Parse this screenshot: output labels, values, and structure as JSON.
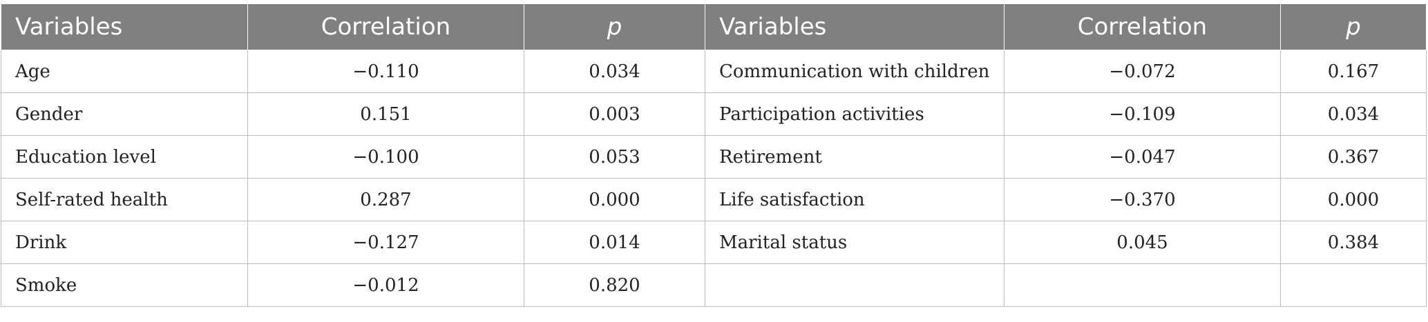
{
  "header": {
    "col1": "Variables",
    "col2": "Correlation",
    "col3": "p",
    "col4": "Variables",
    "col5": "Correlation",
    "col6": "p"
  },
  "rows": [
    {
      "var_left": "Age",
      "corr_left": "−0.110",
      "p_left": "0.034",
      "var_right": "Communication with children",
      "corr_right": "−0.072",
      "p_right": "0.167"
    },
    {
      "var_left": "Gender",
      "corr_left": "0.151",
      "p_left": "0.003",
      "var_right": "Participation activities",
      "corr_right": "−0.109",
      "p_right": "0.034"
    },
    {
      "var_left": "Education level",
      "corr_left": "−0.100",
      "p_left": "0.053",
      "var_right": "Retirement",
      "corr_right": "−0.047",
      "p_right": "0.367"
    },
    {
      "var_left": "Self-rated health",
      "corr_left": "0.287",
      "p_left": "0.000",
      "var_right": "Life satisfaction",
      "corr_right": "−0.370",
      "p_right": "0.000"
    },
    {
      "var_left": "Drink",
      "corr_left": "−0.127",
      "p_left": "0.014",
      "var_right": "Marital status",
      "corr_right": "0.045",
      "p_right": "0.384"
    },
    {
      "var_left": "Smoke",
      "corr_left": "−0.012",
      "p_left": "0.820",
      "var_right": "",
      "corr_right": "",
      "p_right": ""
    }
  ]
}
